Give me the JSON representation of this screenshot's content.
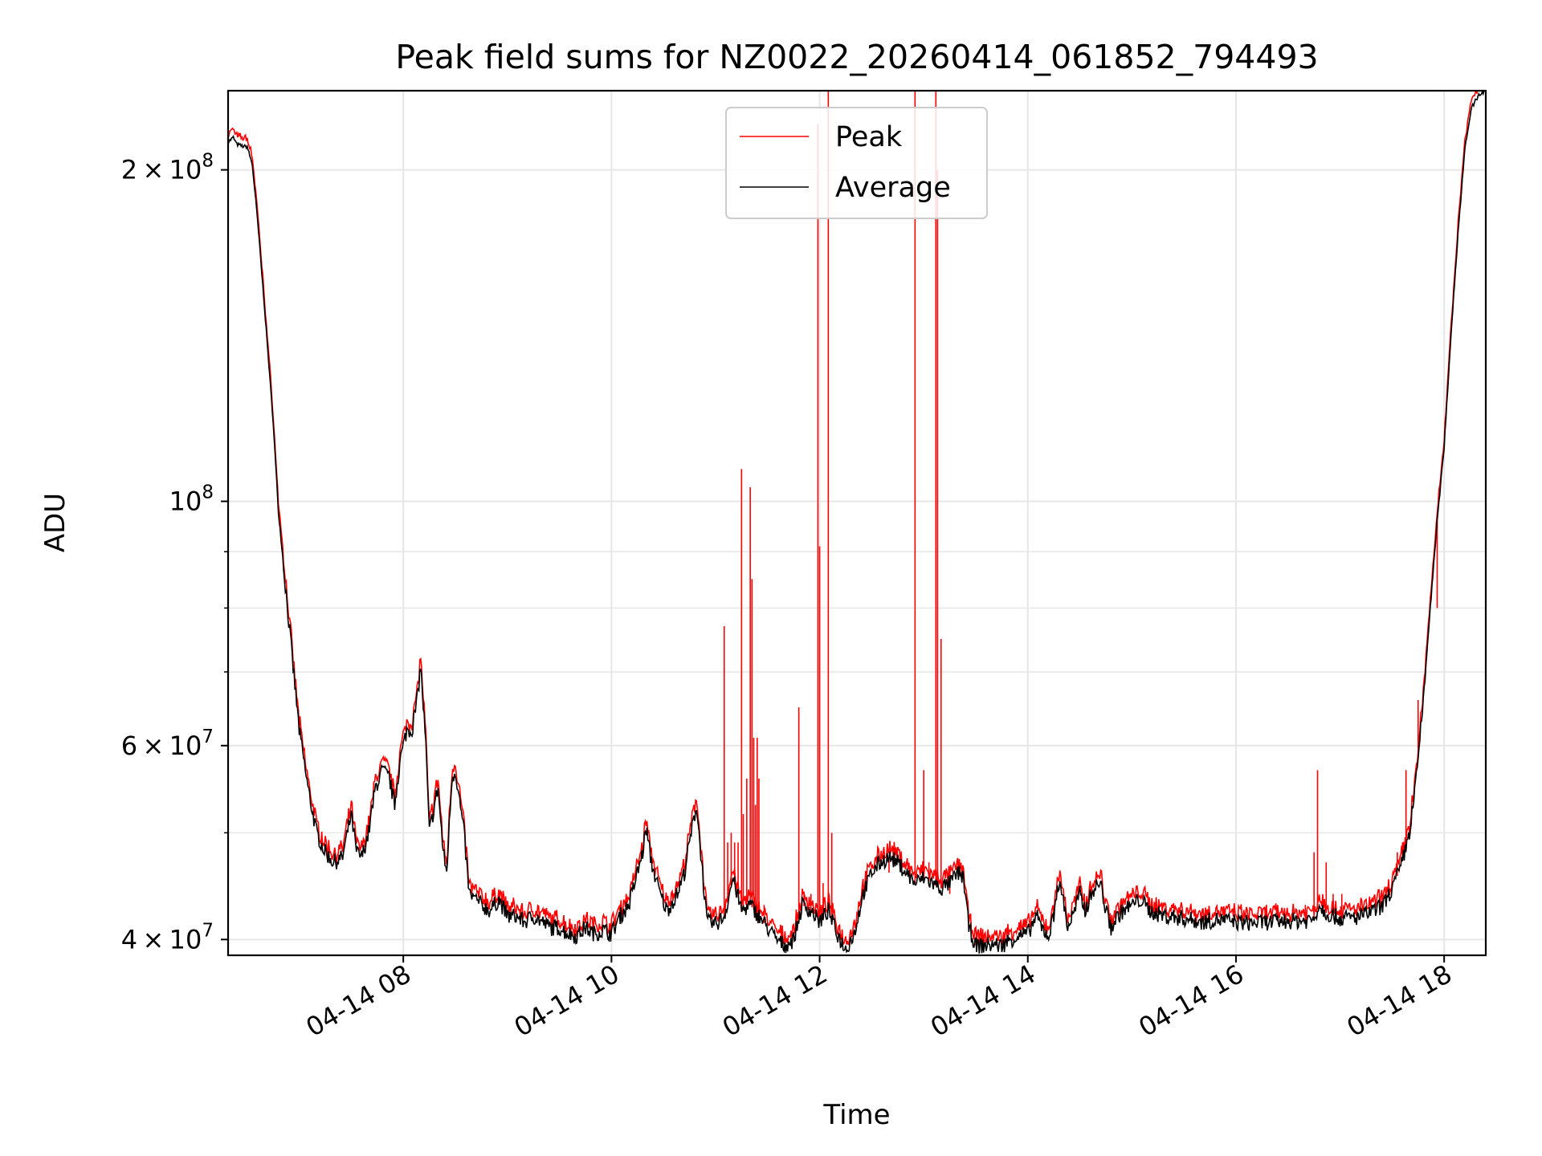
{
  "chart_data": {
    "type": "line",
    "title": "Peak field sums for NZ0022_20260414_061852_794493",
    "xlabel": "Time",
    "ylabel": "ADU",
    "x_range": [
      "2026-04-14 06:19",
      "2026-04-14 18:24"
    ],
    "ylim": [
      38700000,
      236000000
    ],
    "y_scale": "log",
    "grid": true,
    "legend_position": "upper center",
    "x_ticks": [
      {
        "label": "04-14 08",
        "value": "2026-04-14 08:00"
      },
      {
        "label": "04-14 10",
        "value": "2026-04-14 10:00"
      },
      {
        "label": "04-14 12",
        "value": "2026-04-14 12:00"
      },
      {
        "label": "04-14 14",
        "value": "2026-04-14 14:00"
      },
      {
        "label": "04-14 16",
        "value": "2026-04-14 16:00"
      },
      {
        "label": "04-14 18",
        "value": "2026-04-14 18:00"
      }
    ],
    "y_ticks_major": [
      {
        "base": "2",
        "exp": "8",
        "value": 200000000
      },
      {
        "base": "",
        "exp": "8",
        "value": 100000000
      },
      {
        "base": "6",
        "exp": "7",
        "value": 60000000
      },
      {
        "base": "4",
        "exp": "7",
        "value": 40000000
      }
    ],
    "y_ticks_minor": [
      50000000,
      70000000,
      80000000,
      90000000
    ],
    "series": [
      {
        "name": "Average",
        "color": "#000000",
        "points": [
          [
            "06:19",
            212
          ],
          [
            "06:22",
            214
          ],
          [
            "06:24",
            211
          ],
          [
            "06:28",
            210
          ],
          [
            "06:30",
            210
          ],
          [
            "06:33",
            202
          ],
          [
            "06:36",
            180
          ],
          [
            "06:40",
            150
          ],
          [
            "06:45",
            118
          ],
          [
            "06:48",
            98
          ],
          [
            "06:52",
            84
          ],
          [
            "06:56",
            72
          ],
          [
            "07:00",
            62
          ],
          [
            "07:05",
            55
          ],
          [
            "07:10",
            50
          ],
          [
            "07:15",
            48
          ],
          [
            "07:20",
            47
          ],
          [
            "07:25",
            47.5
          ],
          [
            "07:30",
            52
          ],
          [
            "07:33",
            48
          ],
          [
            "07:36",
            47.5
          ],
          [
            "07:40",
            50
          ],
          [
            "07:44",
            55
          ],
          [
            "07:48",
            57
          ],
          [
            "07:52",
            56
          ],
          [
            "07:55",
            53
          ],
          [
            "07:58",
            58
          ],
          [
            "08:02",
            62
          ],
          [
            "08:05",
            62
          ],
          [
            "08:08",
            66
          ],
          [
            "08:10",
            71
          ],
          [
            "08:13",
            60
          ],
          [
            "08:15",
            50
          ],
          [
            "08:20",
            55
          ],
          [
            "08:23",
            48
          ],
          [
            "08:25",
            46
          ],
          [
            "08:28",
            56
          ],
          [
            "08:30",
            57
          ],
          [
            "08:35",
            50
          ],
          [
            "08:38",
            44
          ],
          [
            "08:45",
            43
          ],
          [
            "08:50",
            42.5
          ],
          [
            "08:55",
            43.5
          ],
          [
            "09:00",
            42
          ],
          [
            "09:05",
            42
          ],
          [
            "09:10",
            41.5
          ],
          [
            "09:15",
            42
          ],
          [
            "09:20",
            41.5
          ],
          [
            "09:25",
            41
          ],
          [
            "09:30",
            41
          ],
          [
            "09:35",
            40.5
          ],
          [
            "09:40",
            40.3
          ],
          [
            "09:45",
            41
          ],
          [
            "09:50",
            40.5
          ],
          [
            "09:55",
            40.8
          ],
          [
            "10:00",
            40.5
          ],
          [
            "10:05",
            42
          ],
          [
            "10:10",
            43
          ],
          [
            "10:15",
            46
          ],
          [
            "10:18",
            48
          ],
          [
            "10:20",
            50.5
          ],
          [
            "10:23",
            47
          ],
          [
            "10:28",
            44
          ],
          [
            "10:32",
            42.5
          ],
          [
            "10:38",
            44
          ],
          [
            "10:42",
            46
          ],
          [
            "10:46",
            50
          ],
          [
            "10:49",
            53
          ],
          [
            "10:52",
            47
          ],
          [
            "10:55",
            41.5
          ],
          [
            "11:00",
            41.3
          ],
          [
            "11:05",
            42
          ],
          [
            "11:08",
            44
          ],
          [
            "11:10",
            45.5
          ],
          [
            "11:15",
            42.5
          ],
          [
            "11:20",
            43
          ],
          [
            "11:25",
            42
          ],
          [
            "11:30",
            41
          ],
          [
            "11:35",
            40
          ],
          [
            "11:40",
            39.5
          ],
          [
            "11:45",
            40
          ],
          [
            "11:50",
            43
          ],
          [
            "11:55",
            42.5
          ],
          [
            "12:00",
            41.5
          ],
          [
            "12:05",
            42.5
          ],
          [
            "12:10",
            40.5
          ],
          [
            "12:15",
            39.2
          ],
          [
            "12:20",
            40.5
          ],
          [
            "12:25",
            44
          ],
          [
            "12:30",
            46
          ],
          [
            "12:35",
            47
          ],
          [
            "12:40",
            47.5
          ],
          [
            "12:45",
            47
          ],
          [
            "12:50",
            46
          ],
          [
            "12:55",
            45
          ],
          [
            "13:00",
            45.5
          ],
          [
            "13:05",
            45
          ],
          [
            "13:10",
            44.5
          ],
          [
            "13:15",
            45
          ],
          [
            "13:20",
            46
          ],
          [
            "13:23",
            45.5
          ],
          [
            "13:26",
            41
          ],
          [
            "13:30",
            39.5
          ],
          [
            "13:35",
            39.5
          ],
          [
            "13:40",
            39.6
          ],
          [
            "13:45",
            39.5
          ],
          [
            "13:50",
            40
          ],
          [
            "13:55",
            40.3
          ],
          [
            "14:00",
            40.5
          ],
          [
            "14:05",
            42
          ],
          [
            "14:08",
            41
          ],
          [
            "14:12",
            40.3
          ],
          [
            "14:15",
            42
          ],
          [
            "14:17",
            45
          ],
          [
            "14:20",
            44
          ],
          [
            "14:23",
            41
          ],
          [
            "14:27",
            42.5
          ],
          [
            "14:30",
            44
          ],
          [
            "14:33",
            42.5
          ],
          [
            "14:38",
            44.5
          ],
          [
            "14:42",
            45
          ],
          [
            "14:45",
            42.5
          ],
          [
            "14:48",
            41
          ],
          [
            "14:52",
            42
          ],
          [
            "14:55",
            42.5
          ],
          [
            "15:00",
            43
          ],
          [
            "15:05",
            43.5
          ],
          [
            "15:10",
            42.5
          ],
          [
            "15:15",
            42.2
          ],
          [
            "15:20",
            42
          ],
          [
            "15:30",
            41.8
          ],
          [
            "15:40",
            41.5
          ],
          [
            "15:50",
            41.7
          ],
          [
            "16:00",
            41.5
          ],
          [
            "16:10",
            41.4
          ],
          [
            "16:20",
            41.5
          ],
          [
            "16:30",
            41.6
          ],
          [
            "16:40",
            41.6
          ],
          [
            "16:45",
            41.8
          ],
          [
            "16:48",
            43
          ],
          [
            "16:52",
            42.3
          ],
          [
            "17:00",
            41.8
          ],
          [
            "17:10",
            41.9
          ],
          [
            "17:20",
            42.5
          ],
          [
            "17:25",
            43
          ],
          [
            "17:30",
            44.5
          ],
          [
            "17:35",
            46.5
          ],
          [
            "17:40",
            50
          ],
          [
            "17:44",
            56
          ],
          [
            "17:48",
            66
          ],
          [
            "17:52",
            80
          ],
          [
            "17:56",
            96
          ],
          [
            "18:00",
            112
          ],
          [
            "18:04",
            142
          ],
          [
            "18:08",
            175
          ],
          [
            "18:12",
            210
          ],
          [
            "18:16",
            228
          ],
          [
            "18:20",
            234
          ],
          [
            "18:24",
            236
          ]
        ]
      },
      {
        "name": "Peak",
        "color": "#ff0000",
        "spikes": [
          [
            "11:05",
            77
          ],
          [
            "11:07",
            49
          ],
          [
            "11:09",
            50
          ],
          [
            "11:11",
            49
          ],
          [
            "11:13",
            49
          ],
          [
            "11:15",
            107
          ],
          [
            "11:16",
            52
          ],
          [
            "11:18",
            56
          ],
          [
            "11:20",
            103
          ],
          [
            "11:21",
            85
          ],
          [
            "11:22",
            61
          ],
          [
            "11:23",
            53
          ],
          [
            "11:24",
            61
          ],
          [
            "11:25",
            56
          ],
          [
            "11:28",
            43
          ],
          [
            "11:48",
            65
          ],
          [
            "11:51",
            44
          ],
          [
            "11:55",
            44
          ],
          [
            "11:59",
            220
          ],
          [
            "12:00",
            91
          ],
          [
            "12:02",
            45
          ],
          [
            "12:05",
            236
          ],
          [
            "12:07",
            50
          ],
          [
            "12:40",
            46
          ],
          [
            "12:55",
            236
          ],
          [
            "13:00",
            57
          ],
          [
            "13:03",
            47
          ],
          [
            "13:07",
            236
          ],
          [
            "13:08",
            200
          ],
          [
            "13:10",
            75
          ],
          [
            "13:15",
            44
          ],
          [
            "13:30",
            40
          ],
          [
            "13:35",
            40
          ],
          [
            "16:24",
            43
          ],
          [
            "16:40",
            43
          ],
          [
            "16:45",
            48
          ],
          [
            "16:47",
            57
          ],
          [
            "16:52",
            47
          ],
          [
            "16:56",
            44
          ],
          [
            "17:01",
            44
          ],
          [
            "17:28",
            45
          ],
          [
            "17:33",
            48
          ],
          [
            "17:36",
            49
          ],
          [
            "17:38",
            57
          ],
          [
            "17:45",
            66
          ],
          [
            "17:56",
            80
          ]
        ]
      }
    ],
    "value_units_note": "y values in millions"
  }
}
